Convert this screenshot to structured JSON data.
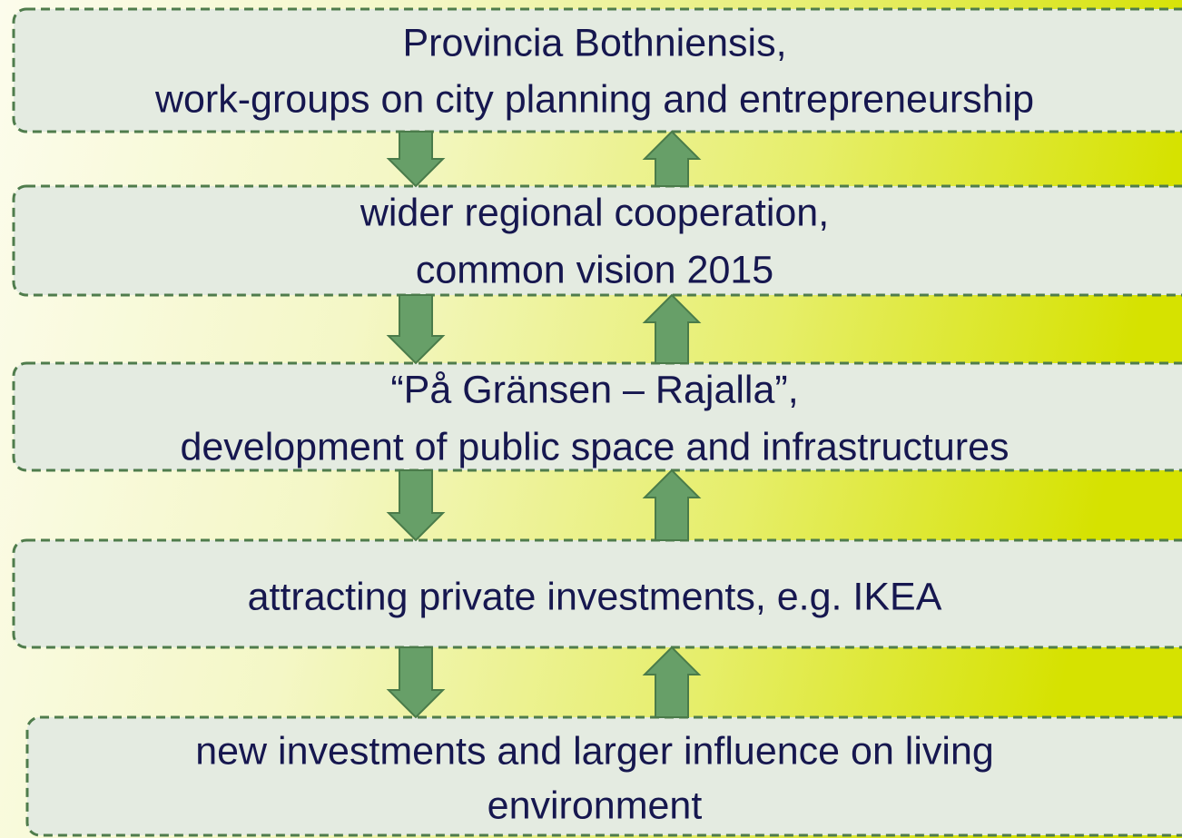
{
  "nodes": [
    {
      "lines": [
        "Provincia Bothniensis,",
        "work-groups on city planning and entrepreneurship"
      ]
    },
    {
      "lines": [
        "wider regional cooperation,",
        "common vision 2015"
      ]
    },
    {
      "lines": [
        "“På Gränsen – Rajalla”,",
        "development of public space and infrastructures"
      ]
    },
    {
      "lines": [
        "attracting private investments, e.g. IKEA"
      ]
    },
    {
      "lines": [
        "new investments and larger influence on living",
        "environment"
      ]
    }
  ]
}
